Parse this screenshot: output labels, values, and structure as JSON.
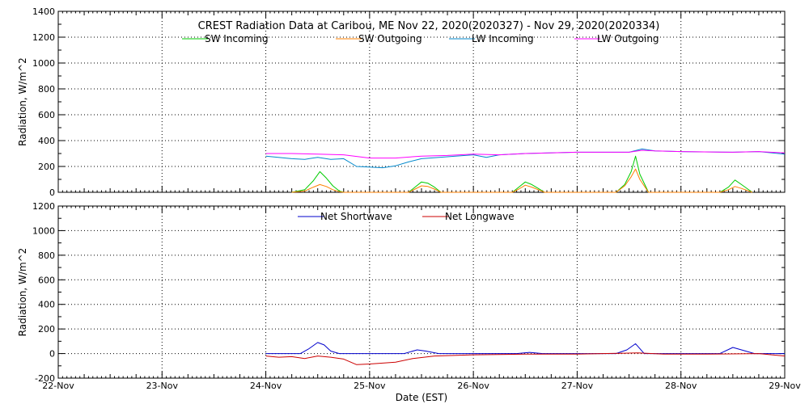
{
  "chart_data": [
    {
      "type": "line",
      "title": "CREST Radiation Data at Caribou, ME   Nov 22, 2020(2020327) - Nov 29, 2020(2020334)",
      "xlabel": "",
      "ylabel": "Radiation, W/m^2",
      "xlim": [
        "Nov 22 00:00",
        "Nov 29 00:00"
      ],
      "ylim": [
        0,
        1400
      ],
      "yticks": [
        0,
        200,
        400,
        600,
        800,
        1000,
        1200,
        1400
      ],
      "grid": true,
      "legend_placement": "top-center",
      "series": [
        {
          "name": "SW Incoming",
          "color": "#00cc00",
          "x": [
            "Nov 24 06:00",
            "Nov 24 09:00",
            "Nov 24 11:00",
            "Nov 24 12:30",
            "Nov 24 14:00",
            "Nov 24 15:30",
            "Nov 24 17:00",
            "Nov 24 18:00",
            "Nov 25 09:00",
            "Nov 25 10:30",
            "Nov 25 12:00",
            "Nov 25 13:30",
            "Nov 25 15:00",
            "Nov 25 16:30",
            "Nov 26 09:00",
            "Nov 26 10:30",
            "Nov 26 12:00",
            "Nov 26 13:30",
            "Nov 26 15:00",
            "Nov 26 16:30",
            "Nov 27 09:00",
            "Nov 27 11:00",
            "Nov 27 12:30",
            "Nov 27 13:30",
            "Nov 27 14:30",
            "Nov 27 16:30",
            "Nov 28 09:00",
            "Nov 28 11:00",
            "Nov 28 12:30",
            "Nov 28 14:00",
            "Nov 28 16:30"
          ],
          "y": [
            0,
            20,
            90,
            160,
            110,
            50,
            10,
            0,
            0,
            40,
            80,
            70,
            40,
            0,
            0,
            40,
            80,
            60,
            30,
            0,
            0,
            60,
            160,
            280,
            140,
            0,
            0,
            40,
            95,
            60,
            0
          ]
        },
        {
          "name": "SW Outgoing",
          "color": "#ff8000",
          "x": [
            "Nov 24 06:00",
            "Nov 24 09:00",
            "Nov 24 11:00",
            "Nov 24 12:30",
            "Nov 24 14:00",
            "Nov 24 15:30",
            "Nov 24 17:00",
            "Nov 24 18:00",
            "Nov 25 09:00",
            "Nov 25 10:30",
            "Nov 25 12:00",
            "Nov 25 13:30",
            "Nov 25 15:00",
            "Nov 25 16:30",
            "Nov 26 09:00",
            "Nov 26 10:30",
            "Nov 26 12:00",
            "Nov 26 13:30",
            "Nov 26 15:00",
            "Nov 26 16:30",
            "Nov 27 09:00",
            "Nov 27 11:00",
            "Nov 27 12:30",
            "Nov 27 13:30",
            "Nov 27 14:30",
            "Nov 27 16:30",
            "Nov 28 09:00",
            "Nov 28 11:00",
            "Nov 28 12:30",
            "Nov 28 14:00",
            "Nov 28 16:30"
          ],
          "y": [
            0,
            10,
            40,
            60,
            45,
            20,
            5,
            0,
            0,
            25,
            50,
            45,
            25,
            0,
            0,
            25,
            55,
            40,
            20,
            0,
            0,
            50,
            120,
            180,
            100,
            0,
            0,
            20,
            45,
            30,
            0
          ]
        },
        {
          "name": "LW Incoming",
          "color": "#0088cc",
          "x": [
            "Nov 24 00:00",
            "Nov 24 06:00",
            "Nov 24 09:00",
            "Nov 24 12:00",
            "Nov 24 15:00",
            "Nov 24 18:00",
            "Nov 24 21:00",
            "Nov 25 00:00",
            "Nov 25 03:00",
            "Nov 25 06:00",
            "Nov 25 09:00",
            "Nov 25 12:00",
            "Nov 25 18:00",
            "Nov 26 00:00",
            "Nov 26 03:00",
            "Nov 26 06:00",
            "Nov 26 12:00",
            "Nov 27 00:00",
            "Nov 27 12:00",
            "Nov 27 15:00",
            "Nov 27 18:00",
            "Nov 28 00:00",
            "Nov 28 12:00",
            "Nov 28 18:00",
            "Nov 29 00:00"
          ],
          "y": [
            280,
            260,
            255,
            270,
            255,
            260,
            200,
            195,
            190,
            205,
            235,
            260,
            275,
            290,
            270,
            290,
            300,
            310,
            310,
            335,
            320,
            315,
            310,
            315,
            295
          ]
        },
        {
          "name": "LW Outgoing",
          "color": "#ff00ff",
          "x": [
            "Nov 24 00:00",
            "Nov 24 06:00",
            "Nov 24 12:00",
            "Nov 24 18:00",
            "Nov 25 00:00",
            "Nov 25 06:00",
            "Nov 25 12:00",
            "Nov 25 18:00",
            "Nov 26 00:00",
            "Nov 26 06:00",
            "Nov 26 12:00",
            "Nov 27 00:00",
            "Nov 27 12:00",
            "Nov 27 15:00",
            "Nov 27 18:00",
            "Nov 28 00:00",
            "Nov 28 12:00",
            "Nov 28 18:00",
            "Nov 29 00:00"
          ],
          "y": [
            300,
            300,
            295,
            290,
            265,
            265,
            280,
            285,
            295,
            290,
            300,
            310,
            310,
            325,
            320,
            315,
            310,
            315,
            305
          ]
        }
      ]
    },
    {
      "type": "line",
      "title": "",
      "xlabel": "Date (EST)",
      "ylabel": "Radiation, W/m^2",
      "xlim": [
        "Nov 22 00:00",
        "Nov 29 00:00"
      ],
      "ylim": [
        -200,
        1200
      ],
      "yticks": [
        -200,
        0,
        200,
        400,
        600,
        800,
        1000,
        1200
      ],
      "xticks": [
        "22-Nov",
        "23-Nov",
        "24-Nov",
        "25-Nov",
        "26-Nov",
        "27-Nov",
        "28-Nov",
        "29-Nov"
      ],
      "grid": true,
      "legend_placement": "top-center",
      "series": [
        {
          "name": "Net Shortwave",
          "color": "#0000cc",
          "x": [
            "Nov 24 00:00",
            "Nov 24 08:00",
            "Nov 24 10:00",
            "Nov 24 12:00",
            "Nov 24 13:30",
            "Nov 24 15:00",
            "Nov 24 17:00",
            "Nov 25 08:00",
            "Nov 25 11:00",
            "Nov 25 13:00",
            "Nov 25 16:00",
            "Nov 26 10:00",
            "Nov 26 13:00",
            "Nov 26 16:00",
            "Nov 27 09:00",
            "Nov 27 11:30",
            "Nov 27 13:30",
            "Nov 27 15:30",
            "Nov 28 09:00",
            "Nov 28 12:00",
            "Nov 28 14:00",
            "Nov 28 17:00",
            "Nov 29 00:00"
          ],
          "y": [
            0,
            0,
            40,
            90,
            70,
            20,
            0,
            0,
            30,
            20,
            0,
            0,
            10,
            0,
            0,
            30,
            80,
            0,
            0,
            50,
            30,
            0,
            0
          ]
        },
        {
          "name": "Net Longwave",
          "color": "#cc0000",
          "x": [
            "Nov 24 00:00",
            "Nov 24 03:00",
            "Nov 24 06:00",
            "Nov 24 09:00",
            "Nov 24 12:00",
            "Nov 24 15:00",
            "Nov 24 18:00",
            "Nov 24 21:00",
            "Nov 25 00:00",
            "Nov 25 06:00",
            "Nov 25 10:00",
            "Nov 25 15:00",
            "Nov 26 00:00",
            "Nov 26 12:00",
            "Nov 27 00:00",
            "Nov 27 14:00",
            "Nov 27 20:00",
            "Nov 28 06:00",
            "Nov 28 18:00",
            "Nov 29 00:00"
          ],
          "y": [
            -20,
            -30,
            -25,
            -40,
            -20,
            -30,
            -45,
            -90,
            -85,
            -70,
            -40,
            -20,
            -10,
            -5,
            -5,
            5,
            -5,
            -5,
            0,
            -20
          ]
        }
      ]
    }
  ]
}
